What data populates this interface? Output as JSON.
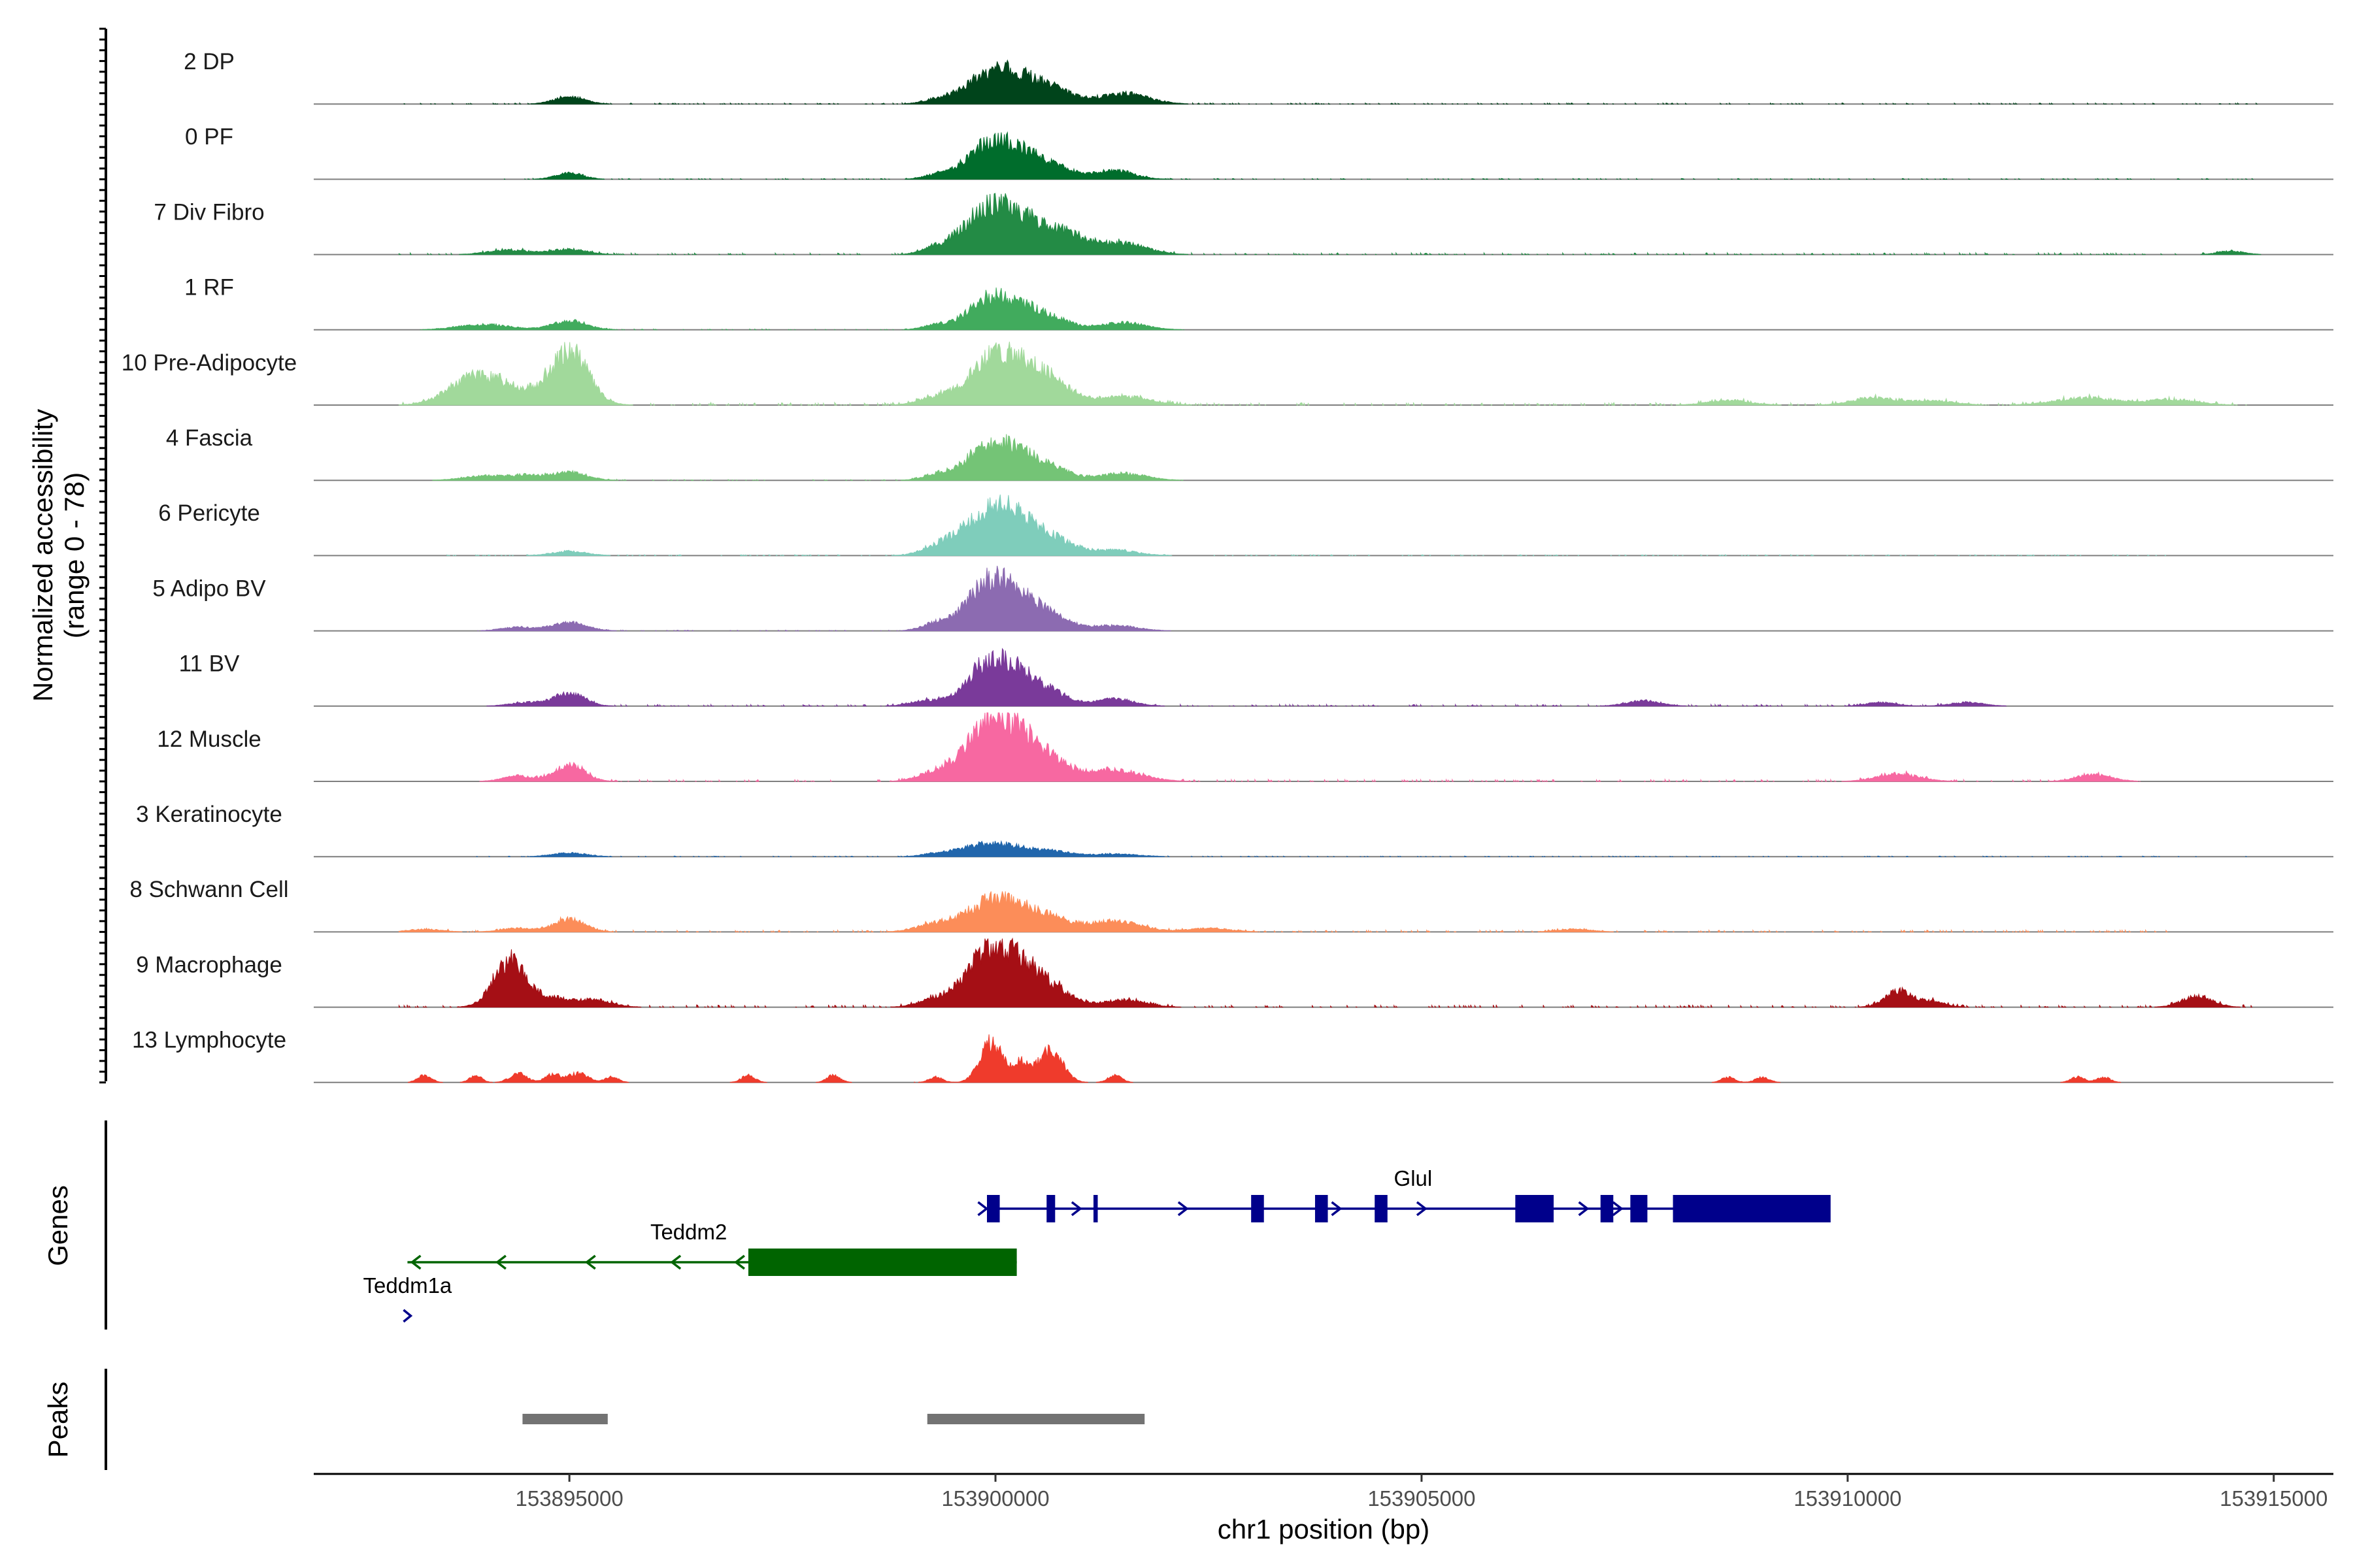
{
  "chart_data": {
    "type": "area",
    "title": "",
    "xlabel": "chr1 position (bp)",
    "ylabel_line1": "Normalized accessibility",
    "ylabel_line2": "(range 0 - 78)",
    "y_range": [
      0,
      78
    ],
    "x_range": [
      153892000,
      153915700
    ],
    "x_ticks": [
      153895000,
      153900000,
      153905000,
      153910000,
      153915000
    ],
    "x_tick_labels": [
      "153895000",
      "153900000",
      "153905000",
      "153910000",
      "153915000"
    ],
    "tracks": [
      {
        "name": "2 DP",
        "color": "#00441b",
        "peaks": [
          [
            153895000,
            8,
            180
          ],
          [
            153899900,
            30,
            280
          ],
          [
            153900300,
            22,
            250
          ],
          [
            153900700,
            14,
            220
          ],
          [
            153901500,
            12,
            280
          ],
          [
            153899300,
            4,
            160
          ]
        ],
        "noise": [
          153893000,
          153914800,
          1.2
        ],
        "seed": 11
      },
      {
        "name": "0 PF",
        "color": "#006d2c",
        "peaks": [
          [
            153895000,
            7,
            160
          ],
          [
            153899900,
            35,
            260
          ],
          [
            153900300,
            24,
            240
          ],
          [
            153900700,
            12,
            230
          ],
          [
            153901400,
            10,
            220
          ],
          [
            153899300,
            4,
            150
          ]
        ],
        "noise": [
          153894200,
          153914800,
          0.9
        ],
        "seed": 12
      },
      {
        "name": "7 Div Fibro",
        "color": "#238b45",
        "peaks": [
          [
            153894300,
            5,
            250
          ],
          [
            153895000,
            6,
            200
          ],
          [
            153899900,
            46,
            300
          ],
          [
            153900400,
            30,
            320
          ],
          [
            153900900,
            14,
            250
          ],
          [
            153901500,
            12,
            280
          ],
          [
            153899300,
            5,
            160
          ],
          [
            153914500,
            4,
            150
          ]
        ],
        "noise": [
          153892800,
          153914800,
          2.0
        ],
        "seed": 13
      },
      {
        "name": "1 RF",
        "color": "#41ab5d",
        "peaks": [
          [
            153894000,
            6,
            300
          ],
          [
            153895000,
            10,
            200
          ],
          [
            153899900,
            32,
            240
          ],
          [
            153900300,
            22,
            230
          ],
          [
            153900700,
            10,
            220
          ],
          [
            153901500,
            8,
            260
          ],
          [
            153899300,
            5,
            160
          ]
        ],
        "noise": [
          153893400,
          153901800,
          0.9
        ],
        "seed": 14
      },
      {
        "name": "10 Pre-Adipocyte",
        "color": "#a1d99b",
        "peaks": [
          [
            153893900,
            32,
            300
          ],
          [
            153894400,
            12,
            250
          ],
          [
            153895000,
            60,
            220
          ],
          [
            153899900,
            42,
            260
          ],
          [
            153900300,
            36,
            260
          ],
          [
            153900700,
            20,
            230
          ],
          [
            153901500,
            10,
            300
          ],
          [
            153899300,
            8,
            200
          ],
          [
            153910300,
            8,
            250
          ],
          [
            153912800,
            8,
            350
          ],
          [
            153913800,
            6,
            300
          ],
          [
            153908600,
            5,
            250
          ],
          [
            153911000,
            5,
            250
          ]
        ],
        "noise": [
          153893000,
          153914800,
          3.0
        ],
        "seed": 15
      },
      {
        "name": "4 Fascia",
        "color": "#74c476",
        "peaks": [
          [
            153894000,
            5,
            250
          ],
          [
            153894500,
            5,
            200
          ],
          [
            153895000,
            9,
            200
          ],
          [
            153899900,
            36,
            260
          ],
          [
            153900300,
            24,
            240
          ],
          [
            153900700,
            10,
            220
          ],
          [
            153901500,
            8,
            260
          ],
          [
            153899300,
            6,
            160
          ]
        ],
        "noise": [
          153893400,
          153901800,
          0.9
        ],
        "seed": 16
      },
      {
        "name": "6 Pericyte",
        "color": "#7fcdbb",
        "peaks": [
          [
            153895000,
            5,
            200
          ],
          [
            153899800,
            34,
            280
          ],
          [
            153900200,
            40,
            260
          ],
          [
            153900700,
            16,
            240
          ],
          [
            153901400,
            6,
            260
          ],
          [
            153899300,
            7,
            180
          ]
        ],
        "noise": [
          153893500,
          153913800,
          1.0
        ],
        "seed": 17
      },
      {
        "name": "5 Adipo BV",
        "color": "#8c6bb1",
        "peaks": [
          [
            153894400,
            4,
            200
          ],
          [
            153895000,
            9,
            200
          ],
          [
            153899900,
            50,
            250
          ],
          [
            153900300,
            30,
            240
          ],
          [
            153900700,
            12,
            220
          ],
          [
            153901400,
            6,
            260
          ],
          [
            153899300,
            8,
            160
          ]
        ],
        "noise": [
          153894000,
          153901800,
          0.8
        ],
        "seed": 18
      },
      {
        "name": "11 BV",
        "color": "#7a3a9a",
        "peaks": [
          [
            153894500,
            4,
            200
          ],
          [
            153895000,
            14,
            180
          ],
          [
            153899900,
            46,
            240
          ],
          [
            153900300,
            30,
            220
          ],
          [
            153900700,
            12,
            200
          ],
          [
            153901400,
            8,
            220
          ],
          [
            153899200,
            6,
            200
          ],
          [
            153907600,
            6,
            200
          ],
          [
            153910400,
            4,
            180
          ],
          [
            153911400,
            4,
            200
          ]
        ],
        "noise": [
          153894300,
          153911600,
          2.0
        ],
        "seed": 19
      },
      {
        "name": "12 Muscle",
        "color": "#f768a1",
        "peaks": [
          [
            153894400,
            6,
            180
          ],
          [
            153895000,
            18,
            180
          ],
          [
            153899900,
            58,
            260
          ],
          [
            153900300,
            40,
            250
          ],
          [
            153900700,
            16,
            230
          ],
          [
            153901400,
            12,
            320
          ],
          [
            153899300,
            10,
            200
          ],
          [
            153910600,
            8,
            250
          ],
          [
            153912900,
            8,
            200
          ]
        ],
        "noise": [
          153894300,
          153913000,
          2.4
        ],
        "seed": 20
      },
      {
        "name": "3 Keratinocyte",
        "color": "#2166ac",
        "peaks": [
          [
            153895000,
            4,
            200
          ],
          [
            153899800,
            11,
            260
          ],
          [
            153900200,
            9,
            260
          ],
          [
            153900700,
            5,
            220
          ],
          [
            153901400,
            3,
            260
          ],
          [
            153899300,
            3,
            160
          ]
        ],
        "noise": [
          153893800,
          153914800,
          0.7
        ],
        "seed": 21
      },
      {
        "name": "8 Schwann Cell",
        "color": "#fc8d59",
        "peaks": [
          [
            153893300,
            3,
            200
          ],
          [
            153894400,
            4,
            200
          ],
          [
            153895000,
            14,
            180
          ],
          [
            153899900,
            30,
            260
          ],
          [
            153900300,
            20,
            250
          ],
          [
            153900700,
            11,
            230
          ],
          [
            153901400,
            12,
            300
          ],
          [
            153899300,
            9,
            220
          ],
          [
            153902500,
            4,
            250
          ],
          [
            153906800,
            3,
            200
          ]
        ],
        "noise": [
          153893200,
          153913800,
          2.0
        ],
        "seed": 22
      },
      {
        "name": "9 Macrophage",
        "color": "#a50f15",
        "peaks": [
          [
            153894300,
            52,
            190
          ],
          [
            153894800,
            10,
            200
          ],
          [
            153895300,
            8,
            200
          ],
          [
            153899900,
            58,
            250
          ],
          [
            153900300,
            38,
            240
          ],
          [
            153900700,
            16,
            220
          ],
          [
            153901500,
            8,
            250
          ],
          [
            153899300,
            9,
            200
          ],
          [
            153910600,
            18,
            160
          ],
          [
            153911000,
            6,
            150
          ],
          [
            153914100,
            12,
            180
          ]
        ],
        "noise": [
          153893000,
          153914800,
          2.8
        ],
        "seed": 23
      },
      {
        "name": "13 Lymphocyte",
        "color": "#ef3b2c",
        "peaks": [
          [
            153893300,
            8,
            80
          ],
          [
            153893900,
            8,
            70
          ],
          [
            153894400,
            10,
            100
          ],
          [
            153894800,
            9,
            90
          ],
          [
            153895100,
            10,
            120
          ],
          [
            153895500,
            6,
            80
          ],
          [
            153897100,
            8,
            80
          ],
          [
            153898100,
            8,
            80
          ],
          [
            153899300,
            6,
            80
          ],
          [
            153899950,
            45,
            130
          ],
          [
            153900300,
            22,
            100
          ],
          [
            153900650,
            36,
            140
          ],
          [
            153901400,
            8,
            80
          ],
          [
            153908600,
            6,
            80
          ],
          [
            153909000,
            6,
            80
          ],
          [
            153912700,
            6,
            80
          ],
          [
            153913000,
            6,
            80
          ]
        ],
        "noise": [
          153899000,
          153901000,
          0.5
        ],
        "seed": 24
      }
    ],
    "genes_label": "Genes",
    "genes": [
      {
        "name": "Glul",
        "color": "#00008b",
        "strand": "+",
        "start": 153899900,
        "end": 153909700,
        "label_pos": 153904900,
        "exons": [
          [
            153899900,
            153900050
          ],
          [
            153900600,
            153900700
          ],
          [
            153901150,
            153901200
          ],
          [
            153903000,
            153903150
          ],
          [
            153903750,
            153903900
          ],
          [
            153904450,
            153904600
          ],
          [
            153906100,
            153906550
          ],
          [
            153907100,
            153907250
          ],
          [
            153907450,
            153907650
          ],
          [
            153907950,
            153909800
          ]
        ]
      },
      {
        "name": "Teddm2",
        "color": "#006400",
        "strand": "-",
        "start": 153893100,
        "end": 153900250,
        "label_pos": 153896400,
        "exons": [
          [
            153897100,
            153900250
          ]
        ]
      },
      {
        "name": "Teddm1a",
        "color": "#00008b",
        "strand": "+",
        "start": 153893100,
        "end": 153893200,
        "label_pos": 153893100,
        "exons": []
      }
    ],
    "peaks_label": "Peaks",
    "peak_regions": [
      [
        153894450,
        153895450
      ],
      [
        153899200,
        153901750
      ]
    ]
  }
}
